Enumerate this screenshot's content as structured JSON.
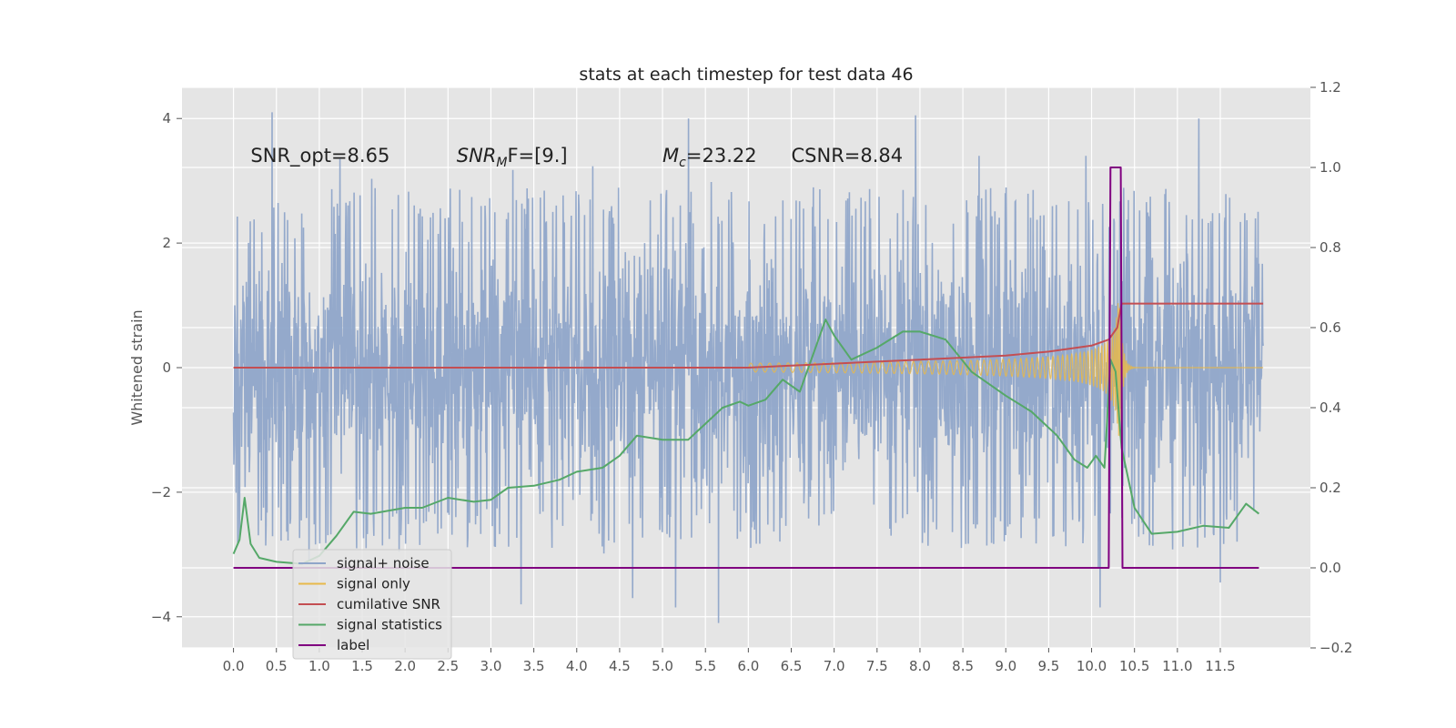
{
  "chart_data": {
    "type": "line",
    "title": "stats at each timestep for test data 46",
    "xlabel": "",
    "ylabel": "Whitened strain",
    "y2label": "",
    "xlim": [
      -0.6,
      12.55
    ],
    "ylim": [
      -4.5,
      4.5
    ],
    "y2lim": [
      -0.2,
      1.2
    ],
    "x_ticks": [
      0.0,
      0.5,
      1.0,
      1.5,
      2.0,
      2.5,
      3.0,
      3.5,
      4.0,
      4.5,
      5.0,
      5.5,
      6.0,
      6.5,
      7.0,
      7.5,
      8.0,
      8.5,
      9.0,
      9.5,
      10.0,
      10.5,
      11.0,
      11.5
    ],
    "x_tick_labels": [
      "0.0",
      "0.5",
      "1.0",
      "1.5",
      "2.0",
      "2.5",
      "3.0",
      "3.5",
      "4.0",
      "4.5",
      "5.0",
      "5.5",
      "6.0",
      "6.5",
      "7.0",
      "7.5",
      "8.0",
      "8.5",
      "9.0",
      "9.5",
      "10.0",
      "10.5",
      "11.0",
      "11.5"
    ],
    "y_ticks": [
      -4,
      -2,
      0,
      2,
      4
    ],
    "y_tick_labels": [
      "−4",
      "−2",
      "0",
      "2",
      "4"
    ],
    "y2_ticks": [
      -0.2,
      0.0,
      0.2,
      0.4,
      0.6,
      0.8,
      1.0,
      1.2
    ],
    "y2_tick_labels": [
      "−0.2",
      "0.0",
      "0.2",
      "0.4",
      "0.6",
      "0.8",
      "1.0",
      "1.2"
    ],
    "grid": true,
    "legend_position": "lower-left",
    "annotations": [
      {
        "text": "SNR_opt=8.65",
        "x": 0.2,
        "y": 3.3
      },
      {
        "base": "SNR",
        "sub": "M",
        "rest": "F=[9.]",
        "x": 2.6,
        "y": 3.3
      },
      {
        "base": "M",
        "sub": "c",
        "rest": "=23.22",
        "x": 5.0,
        "y": 3.3
      },
      {
        "text": "CSNR=8.84",
        "x": 6.5,
        "y": 3.3
      }
    ],
    "series": [
      {
        "name": "signal+ noise",
        "axis": "left",
        "color": "#8fa5c9",
        "kind": "noise",
        "x_range": [
          0.0,
          12.0
        ],
        "typical_amplitude": 2.3,
        "peak_values": [
          {
            "x": 0.45,
            "y": 4.1
          },
          {
            "x": 5.3,
            "y": 4.0
          },
          {
            "x": 7.95,
            "y": 4.05
          },
          {
            "x": 11.25,
            "y": 4.0
          },
          {
            "x": 5.65,
            "y": -4.1
          },
          {
            "x": 4.65,
            "y": -3.7
          },
          {
            "x": 3.35,
            "y": -3.8
          },
          {
            "x": 5.15,
            "y": -3.85
          },
          {
            "x": 10.1,
            "y": -3.85
          },
          {
            "x": 11.5,
            "y": -3.45
          }
        ]
      },
      {
        "name": "signal only",
        "axis": "left",
        "color": "#e8b94a",
        "kind": "chirp",
        "x_range": [
          6.0,
          12.0
        ],
        "merger_x": 10.32,
        "peak_amplitude": 1.5
      },
      {
        "name": "cumilative SNR",
        "axis": "right",
        "color": "#c44e52",
        "x": [
          0.0,
          1.0,
          2.0,
          3.0,
          4.0,
          5.0,
          6.0,
          6.5,
          7.0,
          7.5,
          8.0,
          8.5,
          9.0,
          9.5,
          10.0,
          10.2,
          10.3,
          10.35,
          11.0,
          12.0
        ],
        "values": [
          0.5,
          0.5,
          0.5,
          0.5,
          0.5,
          0.5,
          0.5,
          0.505,
          0.51,
          0.515,
          0.52,
          0.525,
          0.53,
          0.54,
          0.555,
          0.57,
          0.6,
          0.66,
          0.66,
          0.66
        ]
      },
      {
        "name": "signal statistics",
        "axis": "right",
        "color": "#55a868",
        "x": [
          0.0,
          0.07,
          0.13,
          0.2,
          0.3,
          0.5,
          0.8,
          1.0,
          1.2,
          1.4,
          1.6,
          2.0,
          2.2,
          2.5,
          2.8,
          3.0,
          3.2,
          3.5,
          3.8,
          4.0,
          4.3,
          4.5,
          4.7,
          5.0,
          5.3,
          5.5,
          5.7,
          5.9,
          6.0,
          6.2,
          6.4,
          6.6,
          6.8,
          6.9,
          7.0,
          7.2,
          7.5,
          7.8,
          8.0,
          8.3,
          8.6,
          9.0,
          9.3,
          9.6,
          9.8,
          9.95,
          10.05,
          10.15,
          10.22,
          10.28,
          10.35,
          10.5,
          10.7,
          11.0,
          11.3,
          11.6,
          11.8,
          11.95
        ],
        "values": [
          0.035,
          0.07,
          0.175,
          0.06,
          0.025,
          0.015,
          0.01,
          0.03,
          0.08,
          0.14,
          0.135,
          0.15,
          0.15,
          0.175,
          0.165,
          0.17,
          0.2,
          0.205,
          0.22,
          0.24,
          0.25,
          0.28,
          0.33,
          0.32,
          0.32,
          0.36,
          0.4,
          0.415,
          0.405,
          0.42,
          0.47,
          0.44,
          0.56,
          0.62,
          0.58,
          0.52,
          0.55,
          0.59,
          0.59,
          0.57,
          0.49,
          0.43,
          0.39,
          0.33,
          0.27,
          0.25,
          0.28,
          0.25,
          0.52,
          0.49,
          0.3,
          0.15,
          0.085,
          0.09,
          0.105,
          0.1,
          0.16,
          0.135
        ]
      },
      {
        "name": "label",
        "axis": "right",
        "color": "#800080",
        "x": [
          0.0,
          10.2,
          10.22,
          10.34,
          10.36,
          11.95
        ],
        "values": [
          0.0,
          0.0,
          1.0,
          1.0,
          0.0,
          0.0
        ]
      }
    ]
  },
  "legend": {
    "items": [
      {
        "label": "signal+ noise",
        "color": "#8fa5c9"
      },
      {
        "label": "signal only",
        "color": "#e8b94a"
      },
      {
        "label": "cumilative SNR",
        "color": "#c44e52"
      },
      {
        "label": "signal statistics",
        "color": "#55a868"
      },
      {
        "label": "label",
        "color": "#800080"
      }
    ]
  }
}
